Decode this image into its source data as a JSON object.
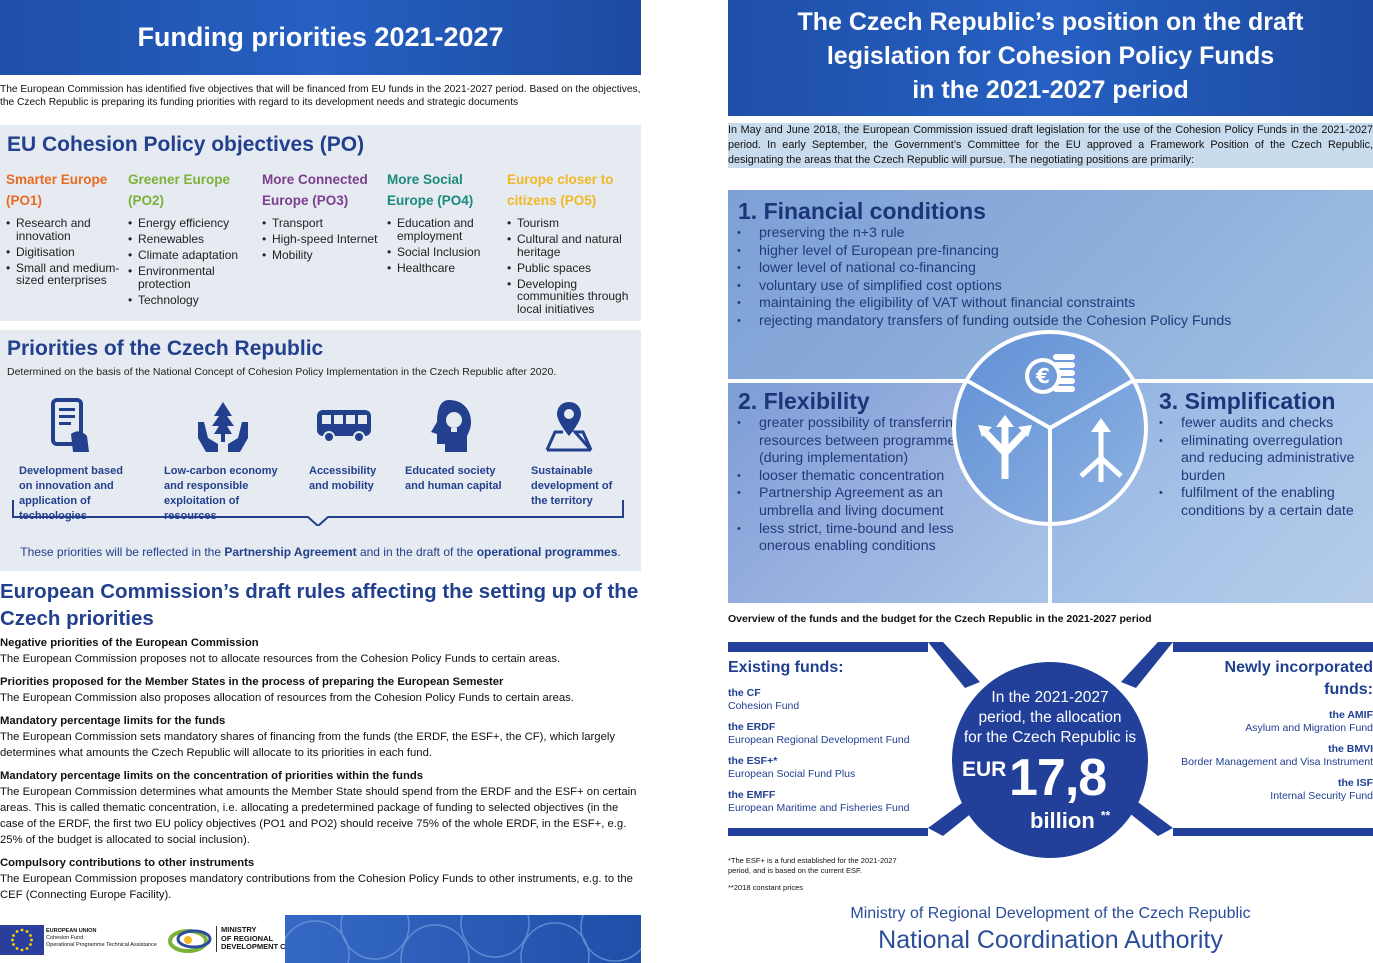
{
  "left": {
    "title": "Funding priorities 2021-2027",
    "intro": "The European Commission has identified five objectives that will be financed from EU funds in the 2021-2027 period. Based on the objectives, the Czech Republic is preparing its funding priorities with regard to its development needs and strategic documents",
    "po_title": "EU Cohesion Policy objectives (PO)",
    "objectives": [
      {
        "heading": "Smarter Europe (PO1)",
        "color": "#e96b1f",
        "items": [
          "Research and innovation",
          "Digitisation",
          "Small and medium-sized enterprises"
        ]
      },
      {
        "heading": "Greener Europe (PO2)",
        "color": "#7cb23a",
        "items": [
          "Energy efficiency",
          "Renewables",
          "Climate adaptation",
          "Environmental protection",
          "Technology"
        ]
      },
      {
        "heading": "More Connected Europe (PO3)",
        "color": "#7b3f8e",
        "items": [
          "Transport",
          "High-speed Internet",
          "Mobility"
        ]
      },
      {
        "heading": "More Social Europe (PO4)",
        "color": "#1a8a7c",
        "items": [
          "Education and employment",
          "Social Inclusion",
          "Healthcare"
        ]
      },
      {
        "heading": "Europe closer to citizens (PO5)",
        "color": "#f0b822",
        "items": [
          "Tourism",
          "Cultural and natural heritage",
          "Public spaces",
          "Developing communities through local initiatives"
        ]
      }
    ],
    "cz_title": "Priorities of the Czech Republic",
    "cz_sub": "Determined on the basis of the National Concept of Cohesion Policy Implementation in the Czech Republic after 2020.",
    "priorities": [
      {
        "label": "Development based on innovation and application of technologies",
        "icon": "tablet-hand-icon"
      },
      {
        "label": "Low-carbon economy and responsible exploitation of resources",
        "icon": "tree-hands-icon"
      },
      {
        "label": "Accessibility and mobility",
        "icon": "bus-icon"
      },
      {
        "label": "Educated society and human capital",
        "icon": "head-bulb-icon"
      },
      {
        "label": "Sustainable development of the territory",
        "icon": "map-pin-icon"
      }
    ],
    "cz_foot_pre": "These priorities will be reflected in the ",
    "cz_foot_b1": "Partnership Agreement",
    "cz_foot_mid": " and in the draft of the ",
    "cz_foot_b2": "operational programmes",
    "cz_foot_end": ".",
    "ec_title": "European Commission’s draft rules affecting the setting up of the Czech priorities",
    "rules": [
      {
        "h": "Negative priorities of the European Commission",
        "t": "The European Commission proposes not to allocate resources from the Cohesion Policy Funds to certain areas."
      },
      {
        "h": "Priorities proposed for the Member States in the process of preparing the European Semester",
        "t": "The European Commission also proposes allocation of resources from the Cohesion Policy Funds to certain areas."
      },
      {
        "h": "Mandatory percentage limits for the funds",
        "t": "The European Commission sets mandatory shares of financing from the funds (the ERDF, the ESF+, the CF), which largely determines what amounts the Czech Republic will allocate to its priorities in each fund."
      },
      {
        "h": "Mandatory percentage limits on the concentration of priorities within the funds",
        "t": "The European Commission determines what amounts the Member State should spend from the ERDF and the ESF+ on certain areas. This is called thematic concentration, i.e. allocating a predetermined package of funding to selected objectives (in the case of the ERDF, the first two EU policy objectives (PO1 and PO2) should receive 75% of the whole ERDF, in the ESF+, e.g. 25% of the budget is allocated to social inclusion)."
      },
      {
        "h": "Compulsory contributions to other instruments",
        "t": "The European Commission proposes mandatory contributions from the Cohesion Policy Funds to other instruments, e.g. to the CEF (Connecting Europe Facility)."
      }
    ],
    "footer": {
      "eu_line1": "EUROPEAN UNION",
      "eu_line2": "Cohesion Fund",
      "eu_line3": "Operational Programme Technical Assistance",
      "ministry_line1": "MINISTRY",
      "ministry_line2": "OF REGIONAL",
      "ministry_line3": "DEVELOPMENT CZ"
    }
  },
  "right": {
    "title_line1": "The Czech Republic’s position on the draft",
    "title_line2": "legislation for Cohesion Policy Funds",
    "title_line3": "in the 2021-2027 period",
    "intro": "In May and June 2018, the European Commission issued draft legislation for the use of the Cohesion Policy Funds in the 2021-2027 period. In early September, the Government’s Committee for the EU approved a Framework Position of the Czech Republic, designating the areas that the Czech Republic will pursue. The negotiating positions are primarily:",
    "financial": {
      "title": "1. Financial conditions",
      "items": [
        "preserving the n+3 rule",
        "higher level of European pre-financing",
        "lower level of national co-financing",
        "voluntary use of simplified cost options",
        "maintaining the eligibility of VAT without financial constraints",
        "rejecting mandatory transfers of funding outside the Cohesion Policy Funds"
      ]
    },
    "flexibility": {
      "title": "2. Flexibility",
      "items": [
        "greater possibility of transferring resources between programmes (during implementation)",
        "looser thematic concentration",
        "Partnership Agreement as an umbrella and living document",
        "less strict, time-bound and less onerous enabling conditions"
      ]
    },
    "simplification": {
      "title": "3. Simplification",
      "items": [
        "fewer audits and checks",
        "eliminating overregulation and reducing administrative burden",
        "fulfilment of the enabling conditions by a certain date"
      ]
    },
    "overview_title": "Overview of the funds and the budget for the Czech Republic in the 2021-2027 period",
    "existing": {
      "heading": "Existing funds:",
      "items": [
        {
          "abbr": "the CF",
          "name": "Cohesion Fund"
        },
        {
          "abbr": "the ERDF",
          "name": "European Regional Development Fund"
        },
        {
          "abbr": "the ESF+*",
          "name": "European Social Fund Plus"
        },
        {
          "abbr": "the EMFF",
          "name": "European Maritime and Fisheries Fund"
        }
      ]
    },
    "new_funds": {
      "heading_line1": "Newly incorporated",
      "heading_line2": "funds:",
      "items": [
        {
          "abbr": "the AMIF",
          "name": "Asylum and Migration Fund"
        },
        {
          "abbr": "the BMVI",
          "name": "Border Management and Visa Instrument"
        },
        {
          "abbr": "the ISF",
          "name": "Internal Security Fund"
        }
      ]
    },
    "circle": {
      "line1": "In the 2021-2027",
      "line2": "period, the allocation",
      "line3": "for the Czech Republic is",
      "currency": "EUR",
      "amount": "17,8",
      "unit": "billion",
      "unit_mark": "**"
    },
    "note1a": "*The ESF+ is a fund established for the 2021-2027",
    "note1b": "period, and is based on the current ESF.",
    "note2": "**2018 constant prices",
    "ministry": "Ministry of Regional Development of the Czech Republic",
    "authority": "National Coordination Authority"
  },
  "colors": {
    "brand_blue": "#1f4fa8",
    "dark_blue": "#23408e",
    "panel_grey": "#e6eaf1"
  }
}
